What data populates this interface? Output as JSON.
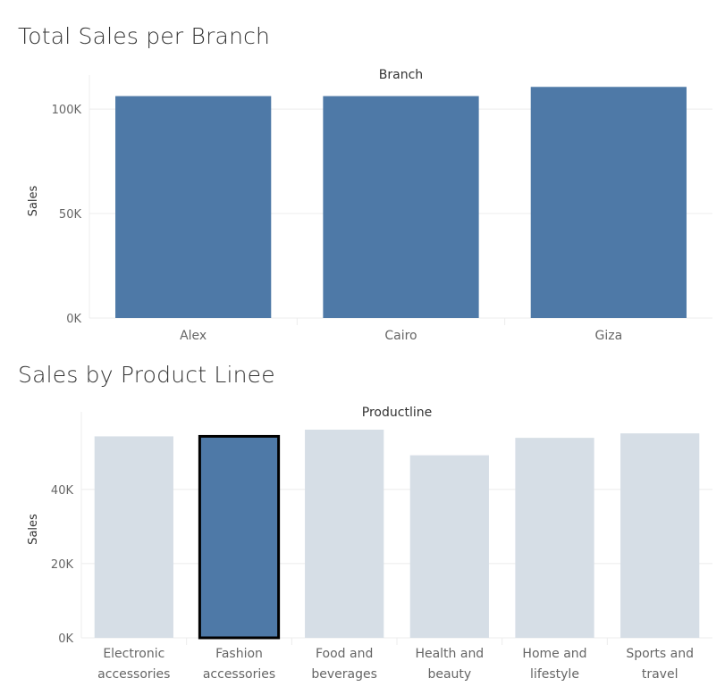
{
  "charts": {
    "branch": {
      "title": "Total Sales per Branch"
    },
    "product": {
      "title": "Sales by Product Linee"
    }
  },
  "colors": {
    "bar": "#4e79a7",
    "bar_muted": "#d6dee6",
    "gridline": "#ececec",
    "selected_outline": "#000000"
  },
  "chart_data": [
    {
      "type": "bar",
      "title": "Total Sales per Branch",
      "header": "Branch",
      "ylabel": "Sales",
      "categories": [
        "Alex",
        "Cairo",
        "Giza"
      ],
      "values": [
        106200,
        106200,
        110600
      ],
      "ylim": [
        0,
        112000
      ],
      "yticks": [
        0,
        50000,
        100000
      ],
      "ytick_labels": [
        "0K",
        "50K",
        "100K"
      ],
      "grid": true
    },
    {
      "type": "bar",
      "title": "Sales by Product Linee",
      "header": "Productline",
      "ylabel": "Sales",
      "categories": [
        "Electronic accessories",
        "Fashion accessories",
        "Food and beverages",
        "Health and beauty",
        "Home and lifestyle",
        "Sports and travel"
      ],
      "category_lines": [
        [
          "Electronic",
          "accessories"
        ],
        [
          "Fashion",
          "accessories"
        ],
        [
          "Food and",
          "beverages"
        ],
        [
          "Health and",
          "beauty"
        ],
        [
          "Home and",
          "lifestyle"
        ],
        [
          "Sports and",
          "travel"
        ]
      ],
      "values": [
        54300,
        54300,
        56100,
        49200,
        53900,
        55100
      ],
      "highlighted": "Fashion accessories",
      "ylim": [
        0,
        58500
      ],
      "yticks": [
        0,
        20000,
        40000
      ],
      "ytick_labels": [
        "0K",
        "20K",
        "40K"
      ],
      "grid": true
    }
  ]
}
